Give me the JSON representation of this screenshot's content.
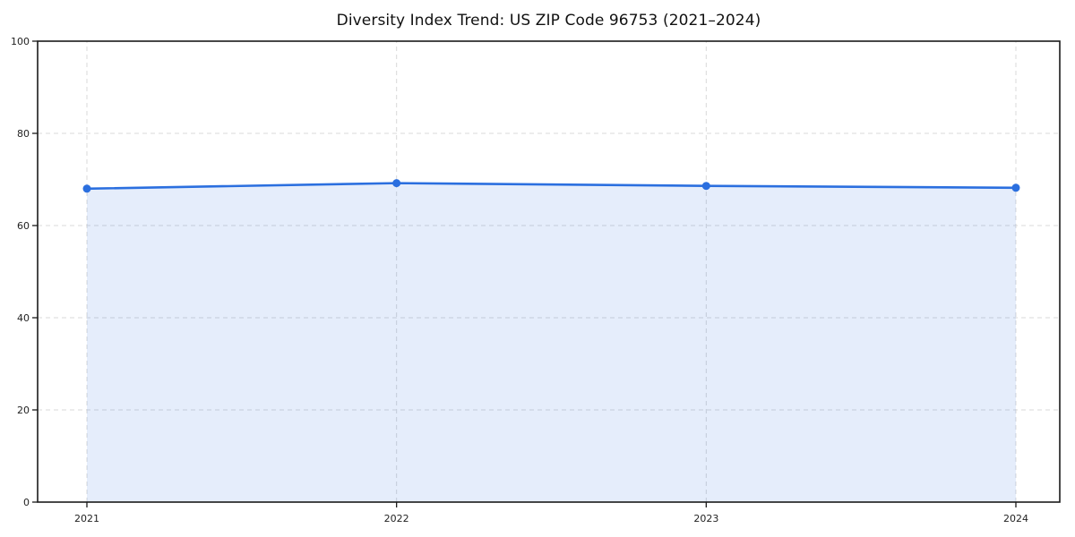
{
  "chart_data": {
    "type": "area",
    "title": "Diversity Index Trend: US ZIP Code 96753 (2021–2024)",
    "x": [
      "2021",
      "2022",
      "2023",
      "2024"
    ],
    "series": [
      {
        "name": "Diversity Index",
        "values": [
          68.0,
          69.2,
          68.6,
          68.2
        ]
      }
    ],
    "xlabel": "",
    "ylabel": "",
    "ylim": [
      0,
      100
    ],
    "yticks": [
      0,
      20,
      40,
      60,
      80,
      100
    ],
    "grid": true,
    "grid_style": "dashed",
    "legend": "none",
    "marker": "circle",
    "colors": {
      "line": "#2b6fdf",
      "marker": "#2b6fdf",
      "area_fill": "rgba(43,111,223,0.12)",
      "gridline": "#d9d9d9",
      "spine": "#1a1a1a",
      "tick_label": "#222222",
      "title": "#111111",
      "background": "#ffffff"
    }
  }
}
